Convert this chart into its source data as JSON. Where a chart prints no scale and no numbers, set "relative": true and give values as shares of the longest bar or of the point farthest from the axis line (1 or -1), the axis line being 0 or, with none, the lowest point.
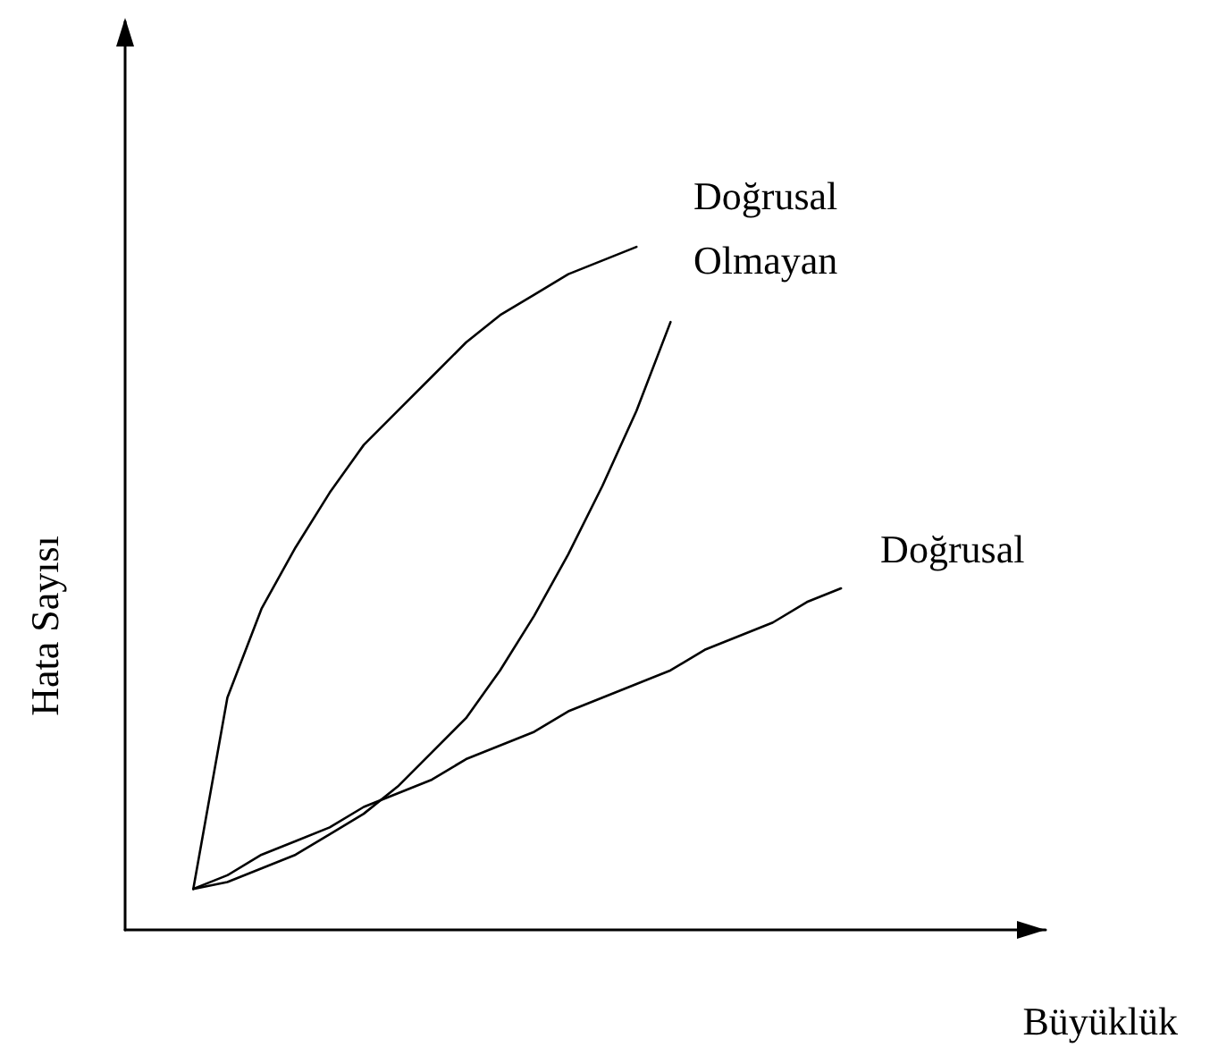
{
  "chart_data": {
    "type": "line",
    "relative": true,
    "xlabel": "Büyüklük",
    "ylabel": "Hata Sayısı",
    "categories": [
      null,
      null,
      null,
      null,
      null,
      null,
      null,
      null,
      null,
      null,
      null,
      null,
      null,
      null,
      null,
      null,
      null,
      null,
      null,
      null,
      null,
      null,
      null,
      null,
      null,
      null,
      null,
      null
    ],
    "series": [
      {
        "color": "#000000",
        "values": [
          null,
          null,
          0.06,
          0.34,
          0.47,
          0.56,
          0.64,
          0.71,
          0.76,
          0.81,
          0.86,
          0.9,
          0.93,
          0.96,
          0.98,
          1,
          null,
          null,
          null,
          null,
          null,
          null,
          null,
          null,
          null,
          null,
          null,
          null
        ]
      },
      {
        "color": "#000000",
        "values": [
          null,
          null,
          0.06,
          0.07,
          0.09,
          0.11,
          0.14,
          0.17,
          0.21,
          0.26,
          0.31,
          0.38,
          0.46,
          0.55,
          0.65,
          0.76,
          0.89,
          null,
          null,
          null,
          null,
          null,
          null,
          null,
          null,
          null,
          null,
          null
        ]
      },
      {
        "name": "Doğrusal",
        "color": "#000000",
        "values": [
          null,
          null,
          0.06,
          0.08,
          0.11,
          0.13,
          0.15,
          0.18,
          0.2,
          0.22,
          0.25,
          0.27,
          0.29,
          0.32,
          0.34,
          0.36,
          0.38,
          0.41,
          0.43,
          0.45,
          0.48,
          0.5,
          null,
          null,
          null,
          null,
          null,
          null
        ]
      }
    ],
    "annotations": [
      "Doğrusal Olmayan"
    ],
    "grid": false,
    "legend": false,
    "marker": "none",
    "line_style": "solid"
  }
}
